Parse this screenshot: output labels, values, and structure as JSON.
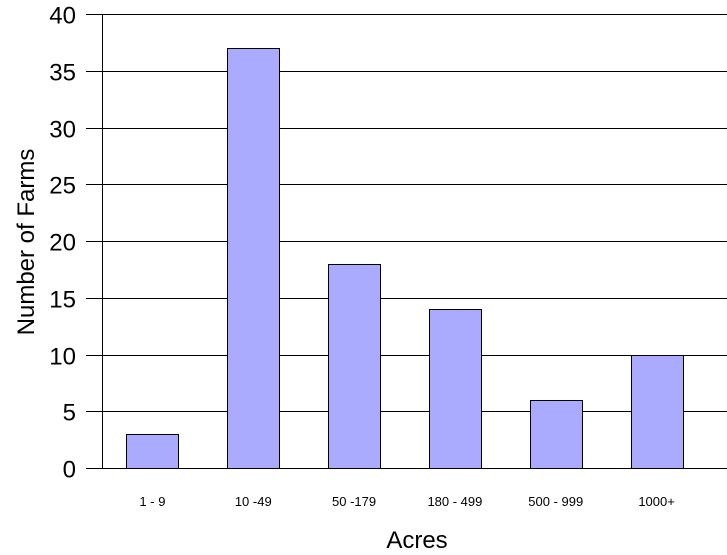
{
  "chart_data": {
    "type": "bar",
    "title": "",
    "xlabel": "Acres",
    "ylabel": "Number of Farms",
    "categories": [
      "1 - 9",
      "10 -49",
      "50 -179",
      "180 - 499",
      "500 - 999",
      "1000+"
    ],
    "values": [
      3,
      37,
      18,
      14,
      6,
      10
    ],
    "ylim": [
      0,
      40
    ],
    "yticks": [
      0,
      5,
      10,
      15,
      20,
      25,
      30,
      35,
      40
    ],
    "grid": "horizontal",
    "bar_color": "#aaaaff",
    "bar_edge_color": "#000000"
  }
}
